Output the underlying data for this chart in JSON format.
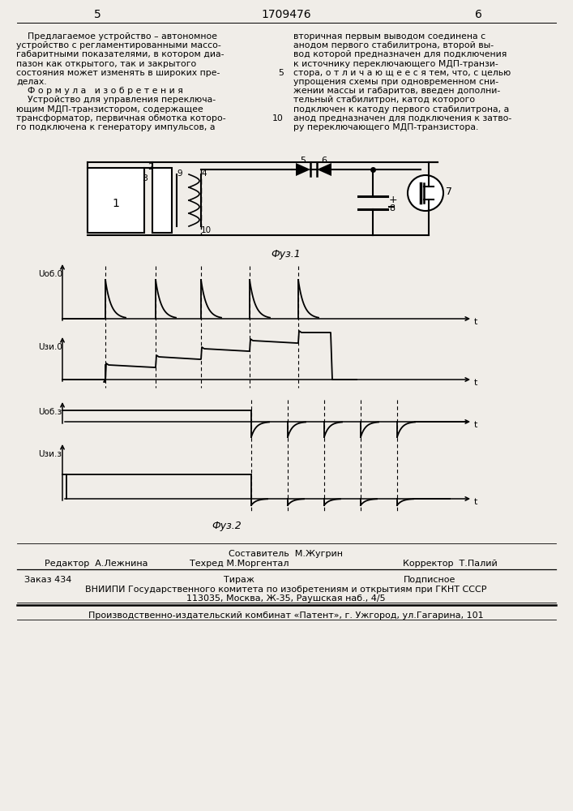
{
  "page_num_left": "5",
  "page_num_center": "1709476",
  "page_num_right": "6",
  "bg_color": "#f0ede8",
  "left_lines": [
    "    Предлагаемое устройство – автономное",
    "устройство с регламентированными массо-",
    "габаритными показателями, в котором диа-",
    "пазон как открытого, так и закрытого",
    "состояния может изменять в широких пре-",
    "делах.",
    "    Ф о р м у л а   и з о б р е т е н и я",
    "    Устройство для управления переключа-",
    "ющим МДП-транзистором, содержащее",
    "трансформатор, первичная обмотка которо-",
    "го подключена к генератору импульсов, а"
  ],
  "right_lines": [
    "вторичная первым выводом соединена с",
    "анодом первого стабилитрона, второй вы-",
    "вод которой предназначен для подключения",
    "к источнику переключающего МДП-транзи-",
    "стора, о т л и ч а ю щ е е с я тем, что, с целью",
    "упрощения схемы при одновременном сни-",
    "жении массы и габаритов, введен дополни-",
    "тельный стабилитрон, катод которого",
    "подключен к катоду первого стабилитрона, а",
    "анод предназначен для подключения к затво-",
    "ру переключающего МДП-транзистора."
  ],
  "linenum_5_row": 4,
  "linenum_10_row": 9,
  "fig1_caption": "Фуз.1",
  "fig2_caption": "Фуз.2",
  "label_uob0": "Uоб.0",
  "label_uzi0": "Uзи.0",
  "label_uob3": "Uоб.з",
  "label_uzi3": "Uзи.з",
  "footer_sestavitel": "Составитель  М.Жугрин",
  "footer_redaktor": "Редактор  А.Лежнина",
  "footer_tehred": "Техред М.Моргентал",
  "footer_korrektor": "Корректор  Т.Палий",
  "footer_zakaz": "Заказ 434",
  "footer_tirazh": "Тираж",
  "footer_podpisn": "Подписное",
  "footer_vniip1": "ВНИИПИ Государственного комитета по изобретениям и открытиям при ГКНТ СССР",
  "footer_vniip2": "113035, Москва, Ж-35, Раушская наб., 4/5",
  "footer_patent": "Производственно-издательский комбинат «Патент», г. Ужгород, ул.Гагарина, 101"
}
